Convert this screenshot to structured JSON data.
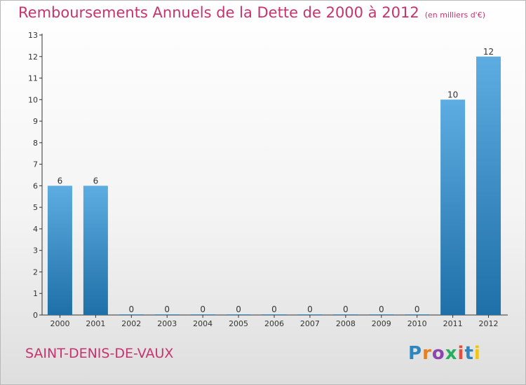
{
  "header": {
    "title": "Remboursements Annuels de la Dette de 2000 à 2012",
    "units": "(en milliers d'€)"
  },
  "footer": {
    "commune": "SAINT-DENIS-DE-VAUX",
    "logo_letters": [
      "P",
      "r",
      "o",
      "x",
      "i",
      "t",
      "i"
    ],
    "logo_colors": [
      "#2e86c1",
      "#e67e22",
      "#8e44ad",
      "#27ae60",
      "#e74c3c",
      "#2e86c1",
      "#f1c40f"
    ]
  },
  "colors": {
    "bar_top": "#5dade2",
    "bar_bottom": "#1f6fa8",
    "title": "#c8336e",
    "axis": "#333333"
  },
  "chart_data": {
    "type": "bar",
    "categories": [
      "2000",
      "2001",
      "2002",
      "2003",
      "2004",
      "2005",
      "2006",
      "2007",
      "2008",
      "2009",
      "2010",
      "2011",
      "2012"
    ],
    "values": [
      6,
      6,
      0,
      0,
      0,
      0,
      0,
      0,
      0,
      0,
      0,
      10,
      12
    ],
    "data_labels": [
      "6",
      "6",
      "0",
      "0",
      "0",
      "0",
      "0",
      "0",
      "0",
      "0",
      "0",
      "10",
      "12"
    ],
    "ylim": [
      0,
      13
    ],
    "yticks": [
      "0",
      "1",
      "2",
      "3",
      "4",
      "5",
      "6",
      "7",
      "8",
      "9",
      "10",
      "11",
      "12",
      "13"
    ],
    "xlabel": "",
    "ylabel": "",
    "grid": false
  }
}
